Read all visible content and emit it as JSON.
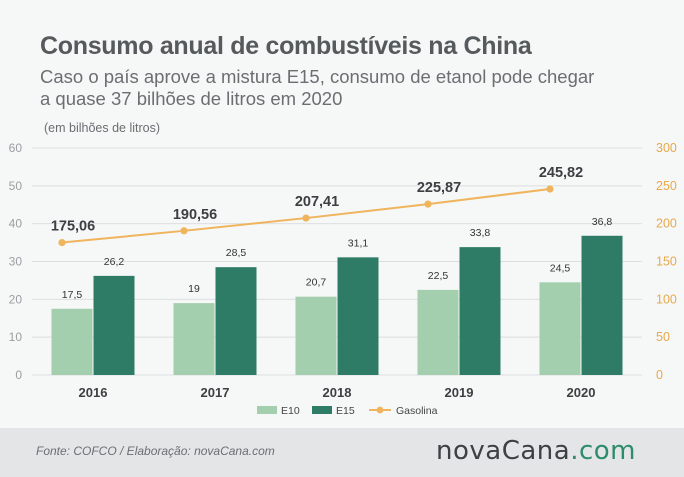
{
  "title": "Consumo anual de combustíveis na China",
  "subtitle": "Caso o país aprove a mistura E15, consumo de etanol pode chegar a quase 37 bilhões de litros em 2020",
  "unit_note": "(em bilhões de litros)",
  "source": "Fonte:  COFCO  / Elaboração:  novaCana.com",
  "logo": {
    "main": "novaCana",
    "suffix": ".com"
  },
  "colors": {
    "e10": "#a3cfae",
    "e15": "#2f7c66",
    "gasoline": "#f0b45c",
    "background": "#f6f7f7",
    "footer": "#e3e5e6"
  },
  "chart_data": {
    "type": "bar",
    "categories": [
      "2016",
      "2017",
      "2018",
      "2019",
      "2020"
    ],
    "series": [
      {
        "name": "E10",
        "type": "bar",
        "axis": "left",
        "values": [
          17.5,
          19,
          20.7,
          22.5,
          24.5
        ],
        "labels": [
          "17,5",
          "19",
          "20,7",
          "22,5",
          "24,5"
        ]
      },
      {
        "name": "E15",
        "type": "bar",
        "axis": "left",
        "values": [
          26.2,
          28.5,
          31.1,
          33.8,
          36.8
        ],
        "labels": [
          "26,2",
          "28,5",
          "31,1",
          "33,8",
          "36,8"
        ]
      },
      {
        "name": "Gasolina",
        "type": "line",
        "axis": "right",
        "values": [
          175.06,
          190.56,
          207.41,
          225.87,
          245.82
        ],
        "labels": [
          "175,06",
          "190,56",
          "207,41",
          "225,87",
          "245,82"
        ]
      }
    ],
    "ylim_left": [
      0,
      60
    ],
    "yticks_left": [
      "0",
      "10",
      "20",
      "30",
      "40",
      "50",
      "60"
    ],
    "ylim_right": [
      0,
      300
    ],
    "yticks_right": [
      "0",
      "50",
      "100",
      "150",
      "200",
      "250",
      "300"
    ],
    "grid": true,
    "legend_position": "bottom"
  }
}
